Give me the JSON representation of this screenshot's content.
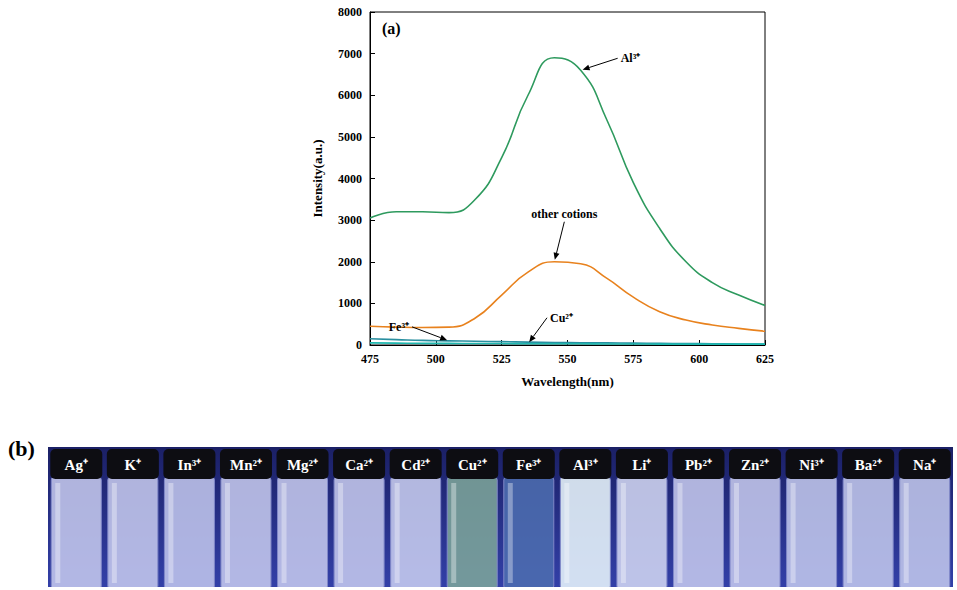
{
  "chart_data": {
    "type": "line",
    "title": "(a)",
    "x_label": "Wavelength(nm)",
    "y_label": "Intensity(a.u.)",
    "x": [
      475,
      485,
      495,
      505,
      515,
      525,
      535,
      545,
      555,
      565,
      575,
      585,
      595,
      605,
      615,
      625
    ],
    "xlim": [
      475,
      625
    ],
    "xticks": [
      475,
      500,
      525,
      550,
      575,
      600,
      625
    ],
    "ylim": [
      0,
      8000
    ],
    "yticks": [
      0,
      1000,
      2000,
      3000,
      4000,
      5000,
      6000,
      7000,
      8000
    ],
    "grid": false,
    "series": [
      {
        "name": "Al³⁺",
        "color": "#2e9a5e",
        "values": [
          3050,
          3200,
          3200,
          3180,
          3500,
          4500,
          6000,
          6900,
          6600,
          5400,
          3900,
          2800,
          2000,
          1500,
          1200,
          950
        ]
      },
      {
        "name": "other cotions",
        "color": "#e8821e",
        "values": [
          450,
          430,
          420,
          430,
          650,
          1200,
          1750,
          2000,
          1950,
          1600,
          1150,
          800,
          600,
          480,
          400,
          330
        ]
      },
      {
        "name": "Fe³⁺",
        "color": "#2a8fa0",
        "values": [
          150,
          130,
          110,
          100,
          90,
          80,
          70,
          60,
          55,
          50,
          45,
          40,
          35,
          30,
          25,
          25
        ]
      },
      {
        "name": "Cu²⁺",
        "color": "#20b8b0",
        "values": [
          50,
          45,
          40,
          40,
          35,
          35,
          30,
          30,
          30,
          25,
          25,
          20,
          20,
          20,
          20,
          20
        ]
      }
    ]
  },
  "panel_b": {
    "label": "(b)",
    "vials": [
      {
        "label": "Ag⁺",
        "color": "#c9cdf0"
      },
      {
        "label": "K⁺",
        "color": "#c9cdf0"
      },
      {
        "label": "In³⁺",
        "color": "#c4c9ee"
      },
      {
        "label": "Mn²⁺",
        "color": "#c9cdf0"
      },
      {
        "label": "Mg²⁺",
        "color": "#c9cdf0"
      },
      {
        "label": "Ca²⁺",
        "color": "#c9cdf0"
      },
      {
        "label": "Cd²⁺",
        "color": "#cdd1f2"
      },
      {
        "label": "Cu²⁺",
        "color": "#7fa89a"
      },
      {
        "label": "Fe³⁺",
        "color": "#4d6fb0"
      },
      {
        "label": "Al³⁺",
        "color": "#eefcff"
      },
      {
        "label": "Li⁺",
        "color": "#d6daf5"
      },
      {
        "label": "Pb²⁺",
        "color": "#c9cdf0"
      },
      {
        "label": "Zn²⁺",
        "color": "#c9cdf0"
      },
      {
        "label": "Ni³⁺",
        "color": "#c6cbef"
      },
      {
        "label": "Ba²⁺",
        "color": "#c6cbef"
      },
      {
        "label": "Na⁺",
        "color": "#c6cbef"
      }
    ]
  }
}
